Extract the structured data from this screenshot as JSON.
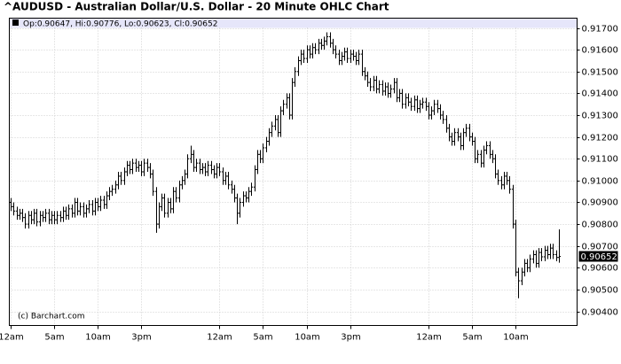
{
  "chart_data": {
    "type": "ohlc",
    "title": "^AUDUSD - Australian Dollar/U.S. Dollar - 20 Minute OHLC Chart",
    "info_labels": [
      "Op:",
      ", Hi:",
      ", Lo:",
      ", Cl:"
    ],
    "watermark": "(c) Barchart.com",
    "color": "#000000",
    "grid": true,
    "categories": [
      "12am",
      null,
      null,
      null,
      null,
      null,
      null,
      null,
      null,
      null,
      null,
      null,
      null,
      null,
      null,
      "5am",
      null,
      null,
      null,
      null,
      null,
      null,
      null,
      null,
      null,
      null,
      null,
      null,
      null,
      null,
      "10am",
      null,
      null,
      null,
      null,
      null,
      null,
      null,
      null,
      null,
      null,
      null,
      null,
      null,
      null,
      "3pm",
      null,
      null,
      null,
      null,
      null,
      null,
      null,
      null,
      null,
      null,
      null,
      null,
      null,
      null,
      null,
      null,
      null,
      null,
      null,
      null,
      null,
      null,
      null,
      null,
      null,
      null,
      "12am",
      null,
      null,
      null,
      null,
      null,
      null,
      null,
      null,
      null,
      null,
      null,
      null,
      null,
      null,
      "5am",
      null,
      null,
      null,
      null,
      null,
      null,
      null,
      null,
      null,
      null,
      null,
      null,
      null,
      null,
      "10am",
      null,
      null,
      null,
      null,
      null,
      null,
      null,
      null,
      null,
      null,
      null,
      null,
      null,
      null,
      "3pm",
      null,
      null,
      null,
      null,
      null,
      null,
      null,
      null,
      null,
      null,
      null,
      null,
      null,
      null,
      null,
      null,
      null,
      null,
      null,
      null,
      null,
      null,
      null,
      null,
      null,
      null,
      "12am",
      null,
      null,
      null,
      null,
      null,
      null,
      null,
      null,
      null,
      null,
      null,
      null,
      null,
      null,
      "5am",
      null,
      null,
      null,
      null,
      null,
      null,
      null,
      null,
      null,
      null,
      null,
      null,
      null,
      null,
      "10am",
      null,
      null,
      null,
      null,
      null,
      null,
      null,
      null,
      null,
      null,
      null,
      null,
      null,
      null,
      null
    ],
    "open": [
      0.909,
      0.9088,
      0.9086,
      0.9084,
      0.9085,
      0.9083,
      0.908,
      0.9084,
      0.9082,
      0.9085,
      0.9081,
      0.9084,
      0.9083,
      0.9085,
      0.9082,
      0.9084,
      0.9082,
      0.9084,
      0.9083,
      0.9086,
      0.9084,
      0.9087,
      0.9085,
      0.909,
      0.9086,
      0.9088,
      0.9085,
      0.9087,
      0.9089,
      0.9086,
      0.909,
      0.9088,
      0.9091,
      0.9089,
      0.9093,
      0.9095,
      0.9096,
      0.9098,
      0.9102,
      0.91,
      0.9104,
      0.9107,
      0.9105,
      0.9108,
      0.9106,
      0.9107,
      0.9104,
      0.9108,
      0.9106,
      0.9103,
      0.9095,
      0.908,
      0.9088,
      0.9092,
      0.9085,
      0.909,
      0.9087,
      0.9095,
      0.9092,
      0.9098,
      0.91,
      0.9103,
      0.911,
      0.9112,
      0.9106,
      0.9108,
      0.9105,
      0.9106,
      0.9104,
      0.9107,
      0.9105,
      0.9103,
      0.9106,
      0.9104,
      0.91,
      0.9102,
      0.9098,
      0.9096,
      0.9092,
      0.9085,
      0.909,
      0.9093,
      0.9092,
      0.9095,
      0.9097,
      0.9105,
      0.9112,
      0.911,
      0.9115,
      0.9118,
      0.9122,
      0.9125,
      0.9128,
      0.9122,
      0.9132,
      0.9135,
      0.9138,
      0.913,
      0.9145,
      0.915,
      0.9155,
      0.9158,
      0.9156,
      0.916,
      0.9158,
      0.9161,
      0.916,
      0.9163,
      0.9162,
      0.9164,
      0.9166,
      0.9163,
      0.916,
      0.9158,
      0.9155,
      0.9157,
      0.9159,
      0.9156,
      0.9158,
      0.9157,
      0.9155,
      0.9158,
      0.915,
      0.9148,
      0.9145,
      0.9143,
      0.9146,
      0.9142,
      0.9144,
      0.9141,
      0.9143,
      0.914,
      0.9142,
      0.9145,
      0.9138,
      0.914,
      0.9135,
      0.9138,
      0.9136,
      0.9134,
      0.9137,
      0.9133,
      0.9135,
      0.9136,
      0.9134,
      0.913,
      0.9132,
      0.9135,
      0.9133,
      0.913,
      0.9128,
      0.9124,
      0.912,
      0.9118,
      0.9122,
      0.912,
      0.9116,
      0.9122,
      0.9124,
      0.912,
      0.9118,
      0.911,
      0.9112,
      0.9108,
      0.9114,
      0.9116,
      0.9112,
      0.911,
      0.9103,
      0.91,
      0.9098,
      0.9102,
      0.91,
      0.9096,
      0.908,
      0.9058,
      0.9054,
      0.9058,
      0.9062,
      0.906,
      0.9064,
      0.9066,
      0.9062,
      0.9067,
      0.9065,
      0.9068,
      0.9066,
      0.9069,
      0.9066,
      0.90647
    ],
    "high": [
      0.9092,
      0.909,
      0.9088,
      0.9087,
      0.9087,
      0.9085,
      0.9086,
      0.9086,
      0.9087,
      0.9087,
      0.9086,
      0.9086,
      0.9087,
      0.9087,
      0.9086,
      0.9086,
      0.9086,
      0.9086,
      0.9088,
      0.9088,
      0.9089,
      0.9089,
      0.9092,
      0.9092,
      0.909,
      0.909,
      0.9089,
      0.9091,
      0.9091,
      0.9092,
      0.9092,
      0.9093,
      0.9093,
      0.9095,
      0.9097,
      0.9098,
      0.91,
      0.9104,
      0.9104,
      0.9106,
      0.9109,
      0.9109,
      0.911,
      0.911,
      0.9109,
      0.9109,
      0.911,
      0.911,
      0.9108,
      0.9105,
      0.9097,
      0.909,
      0.9094,
      0.9094,
      0.9092,
      0.9092,
      0.9097,
      0.9097,
      0.91,
      0.9102,
      0.9105,
      0.9112,
      0.9116,
      0.9114,
      0.911,
      0.911,
      0.9108,
      0.9108,
      0.9109,
      0.9109,
      0.9107,
      0.9108,
      0.9108,
      0.9106,
      0.9104,
      0.9104,
      0.91,
      0.9098,
      0.9094,
      0.9092,
      0.9095,
      0.9095,
      0.9097,
      0.9099,
      0.9107,
      0.9114,
      0.9114,
      0.9117,
      0.912,
      0.9124,
      0.9127,
      0.913,
      0.913,
      0.9134,
      0.9137,
      0.914,
      0.914,
      0.9147,
      0.9152,
      0.9157,
      0.916,
      0.916,
      0.9162,
      0.9162,
      0.9163,
      0.9163,
      0.9165,
      0.9165,
      0.9166,
      0.9168,
      0.9168,
      0.9165,
      0.9162,
      0.916,
      0.9159,
      0.9161,
      0.9161,
      0.916,
      0.916,
      0.9159,
      0.916,
      0.916,
      0.9152,
      0.915,
      0.9147,
      0.9148,
      0.9148,
      0.9146,
      0.9146,
      0.9145,
      0.9145,
      0.9144,
      0.9147,
      0.9147,
      0.9142,
      0.9142,
      0.914,
      0.914,
      0.9138,
      0.9139,
      0.9139,
      0.9137,
      0.9138,
      0.9138,
      0.9136,
      0.9134,
      0.9137,
      0.9137,
      0.9135,
      0.9132,
      0.913,
      0.9126,
      0.9122,
      0.9124,
      0.9124,
      0.9122,
      0.9124,
      0.9126,
      0.9126,
      0.9122,
      0.912,
      0.9114,
      0.9114,
      0.9116,
      0.9118,
      0.9118,
      0.9114,
      0.9112,
      0.9105,
      0.9102,
      0.9104,
      0.9104,
      0.9102,
      0.9098,
      0.9082,
      0.906,
      0.906,
      0.9064,
      0.9064,
      0.9066,
      0.9068,
      0.9068,
      0.9069,
      0.9069,
      0.907,
      0.907,
      0.9071,
      0.9071,
      0.9068,
      0.90776
    ],
    "low": [
      0.9086,
      0.9084,
      0.9082,
      0.9082,
      0.9081,
      0.9078,
      0.9078,
      0.908,
      0.908,
      0.9079,
      0.9079,
      0.9081,
      0.9081,
      0.908,
      0.908,
      0.908,
      0.908,
      0.9081,
      0.9081,
      0.9082,
      0.9082,
      0.9083,
      0.9083,
      0.9084,
      0.9084,
      0.9083,
      0.9083,
      0.9085,
      0.9084,
      0.9084,
      0.9086,
      0.9086,
      0.9087,
      0.9087,
      0.9091,
      0.9093,
      0.9094,
      0.9096,
      0.9098,
      0.9098,
      0.9102,
      0.9103,
      0.9103,
      0.9104,
      0.9104,
      0.9102,
      0.9102,
      0.9104,
      0.9101,
      0.9093,
      0.9076,
      0.9078,
      0.9086,
      0.9083,
      0.9083,
      0.9085,
      0.9085,
      0.909,
      0.909,
      0.9096,
      0.9098,
      0.9101,
      0.9108,
      0.9104,
      0.9104,
      0.9103,
      0.9103,
      0.9102,
      0.9102,
      0.9103,
      0.9101,
      0.9101,
      0.9102,
      0.9098,
      0.9098,
      0.9096,
      0.9094,
      0.909,
      0.908,
      0.9083,
      0.9088,
      0.909,
      0.909,
      0.9093,
      0.9095,
      0.9103,
      0.9108,
      0.9108,
      0.9113,
      0.9116,
      0.912,
      0.9123,
      0.912,
      0.912,
      0.913,
      0.9133,
      0.9128,
      0.9128,
      0.9143,
      0.9148,
      0.9153,
      0.9154,
      0.9154,
      0.9156,
      0.9156,
      0.9158,
      0.9158,
      0.916,
      0.916,
      0.9162,
      0.9161,
      0.9158,
      0.9156,
      0.9153,
      0.9153,
      0.9155,
      0.9154,
      0.9154,
      0.9155,
      0.9153,
      0.9153,
      0.9148,
      0.9146,
      0.9143,
      0.9141,
      0.9141,
      0.914,
      0.914,
      0.9139,
      0.9139,
      0.9138,
      0.9138,
      0.914,
      0.9136,
      0.9136,
      0.9133,
      0.9133,
      0.9134,
      0.9132,
      0.9132,
      0.9131,
      0.9131,
      0.9133,
      0.9132,
      0.9128,
      0.9128,
      0.913,
      0.9131,
      0.9128,
      0.9126,
      0.9122,
      0.9118,
      0.9116,
      0.9116,
      0.9118,
      0.9114,
      0.9114,
      0.912,
      0.9118,
      0.9116,
      0.9108,
      0.9108,
      0.9106,
      0.9106,
      0.9112,
      0.911,
      0.9108,
      0.9101,
      0.9098,
      0.9096,
      0.9096,
      0.9098,
      0.9094,
      0.9078,
      0.9056,
      0.9046,
      0.9052,
      0.9056,
      0.9058,
      0.9058,
      0.9062,
      0.906,
      0.906,
      0.9063,
      0.9063,
      0.9064,
      0.9064,
      0.9064,
      0.9063,
      0.90623
    ],
    "close": [
      0.9088,
      0.9086,
      0.9084,
      0.9085,
      0.9083,
      0.908,
      0.9084,
      0.9082,
      0.9085,
      0.9081,
      0.9084,
      0.9083,
      0.9085,
      0.9082,
      0.9084,
      0.9082,
      0.9084,
      0.9083,
      0.9086,
      0.9084,
      0.9087,
      0.9085,
      0.909,
      0.9086,
      0.9088,
      0.9085,
      0.9087,
      0.9089,
      0.9086,
      0.909,
      0.9088,
      0.9091,
      0.9089,
      0.9093,
      0.9095,
      0.9096,
      0.9098,
      0.9102,
      0.91,
      0.9104,
      0.9107,
      0.9105,
      0.9108,
      0.9106,
      0.9107,
      0.9104,
      0.9108,
      0.9106,
      0.9103,
      0.9095,
      0.908,
      0.9088,
      0.9092,
      0.9085,
      0.909,
      0.9087,
      0.9095,
      0.9092,
      0.9098,
      0.91,
      0.9103,
      0.911,
      0.9112,
      0.9106,
      0.9108,
      0.9105,
      0.9106,
      0.9104,
      0.9107,
      0.9105,
      0.9103,
      0.9106,
      0.9104,
      0.91,
      0.9102,
      0.9098,
      0.9096,
      0.9092,
      0.9085,
      0.909,
      0.9093,
      0.9092,
      0.9095,
      0.9097,
      0.9105,
      0.9112,
      0.911,
      0.9115,
      0.9118,
      0.9122,
      0.9125,
      0.9128,
      0.9122,
      0.9132,
      0.9135,
      0.9138,
      0.913,
      0.9145,
      0.915,
      0.9155,
      0.9158,
      0.9156,
      0.916,
      0.9158,
      0.9161,
      0.916,
      0.9163,
      0.9162,
      0.9164,
      0.9166,
      0.9163,
      0.916,
      0.9158,
      0.9155,
      0.9157,
      0.9159,
      0.9156,
      0.9158,
      0.9157,
      0.9155,
      0.9158,
      0.915,
      0.9148,
      0.9145,
      0.9143,
      0.9146,
      0.9142,
      0.9144,
      0.9141,
      0.9143,
      0.914,
      0.9142,
      0.9145,
      0.9138,
      0.914,
      0.9135,
      0.9138,
      0.9136,
      0.9134,
      0.9137,
      0.9133,
      0.9135,
      0.9136,
      0.9134,
      0.913,
      0.9132,
      0.9135,
      0.9133,
      0.913,
      0.9128,
      0.9124,
      0.912,
      0.9118,
      0.9122,
      0.912,
      0.9116,
      0.9122,
      0.9124,
      0.912,
      0.9118,
      0.911,
      0.9112,
      0.9108,
      0.9114,
      0.9116,
      0.9112,
      0.911,
      0.9103,
      0.91,
      0.9098,
      0.9102,
      0.91,
      0.9096,
      0.908,
      0.9058,
      0.9054,
      0.9058,
      0.9062,
      0.906,
      0.9064,
      0.9066,
      0.9062,
      0.9067,
      0.9065,
      0.9068,
      0.9066,
      0.9069,
      0.9066,
      0.90647,
      0.90652
    ],
    "ylim": [
      0.90335,
      0.91745
    ],
    "yticks": [
      {
        "value": 0.904,
        "label": "0.90400"
      },
      {
        "value": 0.905,
        "label": "0.90500"
      },
      {
        "value": 0.906,
        "label": "0.90600"
      },
      {
        "value": 0.907,
        "label": "0.90700"
      },
      {
        "value": 0.908,
        "label": "0.90800"
      },
      {
        "value": 0.909,
        "label": "0.90900"
      },
      {
        "value": 0.91,
        "label": "0.91000"
      },
      {
        "value": 0.911,
        "label": "0.91100"
      },
      {
        "value": 0.912,
        "label": "0.91200"
      },
      {
        "value": 0.913,
        "label": "0.91300"
      },
      {
        "value": 0.914,
        "label": "0.91400"
      },
      {
        "value": 0.915,
        "label": "0.91500"
      },
      {
        "value": 0.916,
        "label": "0.91600"
      },
      {
        "value": 0.917,
        "label": "0.91700"
      }
    ]
  }
}
